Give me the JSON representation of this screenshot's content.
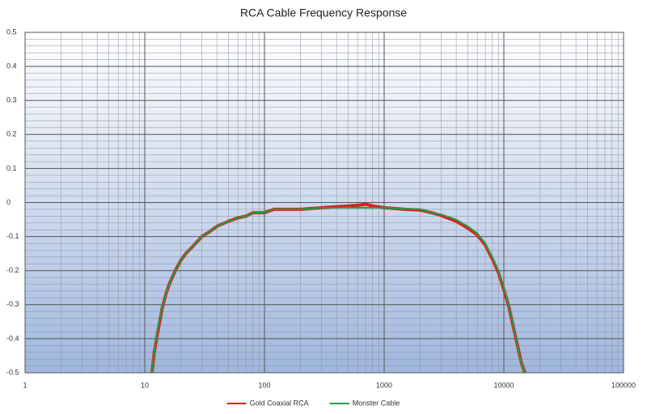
{
  "chart_data": {
    "type": "line",
    "title": "RCA Cable Frequency Response",
    "xlog": true,
    "xlim": [
      1,
      100000
    ],
    "xticks": [
      1,
      10,
      100,
      1000,
      10000,
      100000
    ],
    "ylim": [
      -0.5,
      0.5
    ],
    "yticks": [
      0.5,
      0.4,
      0.3,
      0.2,
      0.1,
      0,
      -0.1,
      -0.2,
      -0.3,
      -0.4,
      -0.5
    ],
    "grid": true,
    "legend": "bottom",
    "series": [
      {
        "name": "Gold Coaxial RCA",
        "color": "#e0201b",
        "x": [
          11.5,
          12,
          13,
          14,
          15,
          16,
          18,
          20,
          22,
          25,
          30,
          35,
          40,
          50,
          60,
          70,
          80,
          100,
          120,
          200,
          300,
          500,
          600,
          700,
          800,
          1000,
          1500,
          2000,
          2500,
          3000,
          4000,
          5000,
          6000,
          7000,
          8000,
          9000,
          10000,
          11000,
          12000,
          13000,
          14000,
          15000
        ],
        "values": [
          -0.5,
          -0.44,
          -0.37,
          -0.31,
          -0.27,
          -0.24,
          -0.2,
          -0.17,
          -0.15,
          -0.13,
          -0.1,
          -0.085,
          -0.07,
          -0.055,
          -0.045,
          -0.04,
          -0.03,
          -0.03,
          -0.02,
          -0.02,
          -0.015,
          -0.01,
          -0.008,
          -0.005,
          -0.01,
          -0.015,
          -0.02,
          -0.022,
          -0.03,
          -0.038,
          -0.055,
          -0.075,
          -0.095,
          -0.125,
          -0.165,
          -0.205,
          -0.255,
          -0.305,
          -0.365,
          -0.42,
          -0.47,
          -0.5
        ]
      },
      {
        "name": "Monster Cable",
        "color": "#1e9e4a",
        "x": [
          11.5,
          12,
          13,
          14,
          15,
          16,
          18,
          20,
          22,
          25,
          30,
          35,
          40,
          50,
          60,
          70,
          80,
          100,
          120,
          200,
          300,
          500,
          1000,
          1500,
          2000,
          2500,
          3000,
          4000,
          5000,
          6000,
          7000,
          8000,
          9000,
          10000,
          11000,
          12000,
          13000,
          14000,
          15000
        ],
        "values": [
          -0.5,
          -0.44,
          -0.36,
          -0.31,
          -0.27,
          -0.24,
          -0.2,
          -0.17,
          -0.15,
          -0.13,
          -0.1,
          -0.085,
          -0.07,
          -0.055,
          -0.045,
          -0.04,
          -0.03,
          -0.03,
          -0.02,
          -0.02,
          -0.015,
          -0.015,
          -0.015,
          -0.018,
          -0.02,
          -0.03,
          -0.035,
          -0.05,
          -0.07,
          -0.09,
          -0.12,
          -0.16,
          -0.2,
          -0.25,
          -0.3,
          -0.36,
          -0.42,
          -0.47,
          -0.5
        ]
      }
    ]
  }
}
